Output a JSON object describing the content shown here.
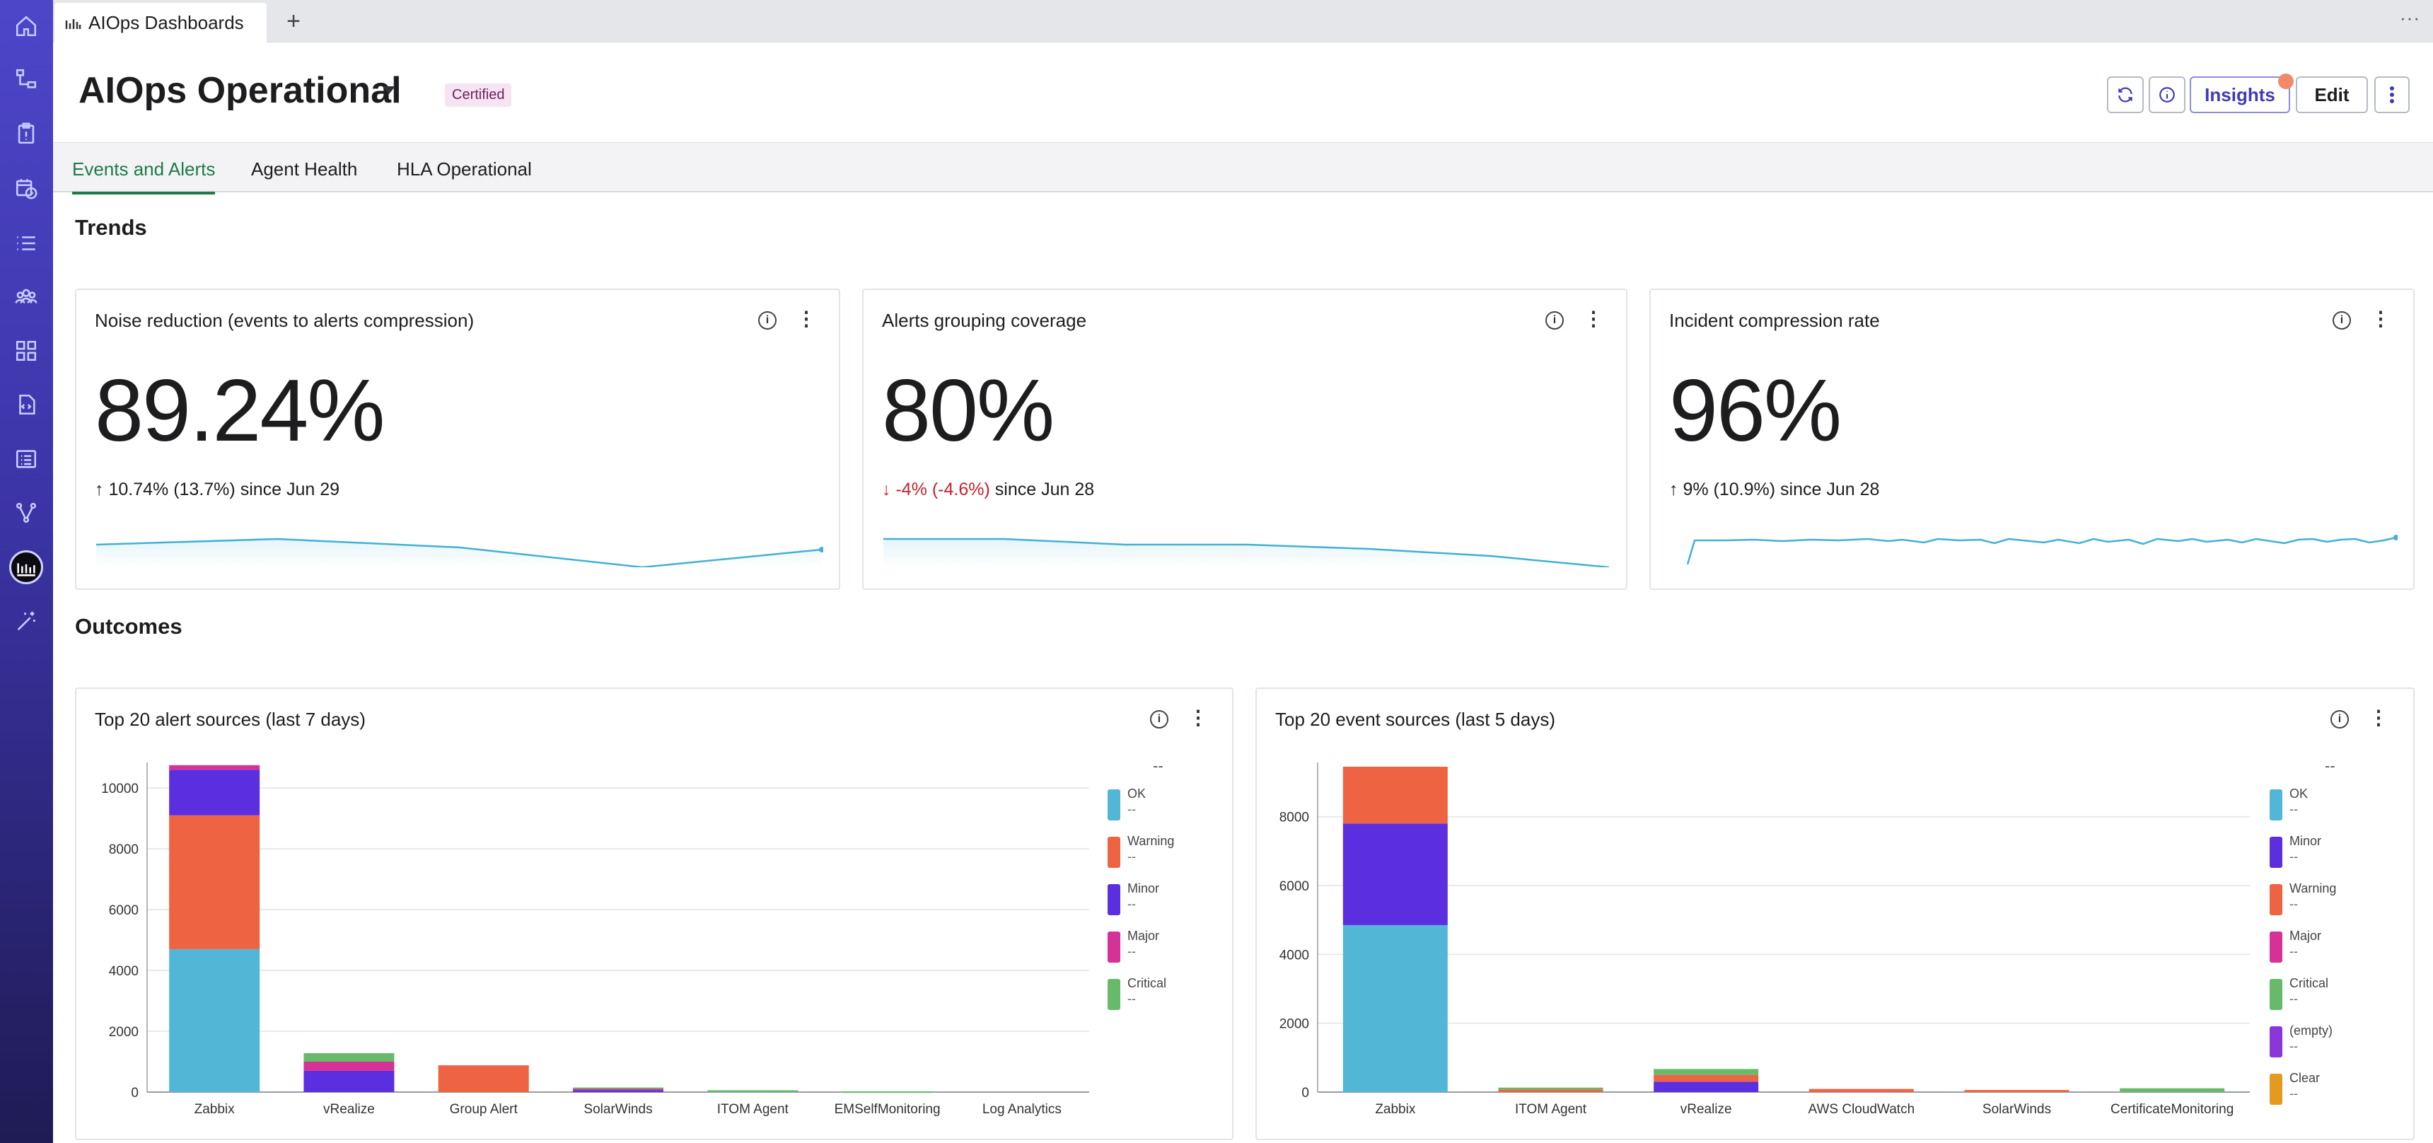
{
  "browser_tab": {
    "label": "AIOps Dashboards"
  },
  "header": {
    "title": "AIOps Operational",
    "badge": "Certified",
    "insights_label": "Insights",
    "edit_label": "Edit"
  },
  "tabs": [
    {
      "label": "Events and Alerts",
      "active": true
    },
    {
      "label": "Agent Health",
      "active": false
    },
    {
      "label": "HLA Operational",
      "active": false
    }
  ],
  "sections": {
    "trends": "Trends",
    "outcomes": "Outcomes"
  },
  "kpis": [
    {
      "title": "Noise reduction (events to alerts compression)",
      "value": "89.24%",
      "direction": "up",
      "change": "10.74% (13.7%)",
      "since": "since Jun 29",
      "trend": [
        0.55,
        0.42,
        0.6,
        1.0,
        0.72
      ]
    },
    {
      "title": "Alerts grouping coverage",
      "value": "80%",
      "direction": "down",
      "change": "-4% (-4.6%)",
      "since": "since Jun 28",
      "trend": [
        0.2,
        0.2,
        0.35,
        0.35,
        0.45,
        0.6,
        1.0
      ]
    },
    {
      "title": "Incident compression rate",
      "value": "96%",
      "direction": "up",
      "change": "9% (10.9%)",
      "since": "since Jun 28",
      "trend": []
    }
  ],
  "charts": {
    "alerts": {
      "title": "Top 20 alert sources (last 7 days)"
    },
    "events": {
      "title": "Top 20 event sources (last 5 days)"
    }
  },
  "legend_placeholder": "--",
  "colors": {
    "OK": "#52b6d6",
    "Warning": "#ee6342",
    "Minor": "#5b2ee0",
    "Major": "#d63196",
    "Critical": "#67ba6a",
    "(empty)": "#8a36d9",
    "Clear": "#e49a20"
  },
  "chart_data": [
    {
      "type": "bar",
      "stacked": true,
      "title": "Top 20 alert sources (last 7 days)",
      "categories": [
        "Zabbix",
        "vRealize",
        "Group Alert",
        "SolarWinds",
        "ITOM Agent",
        "EMSelfMonitoring",
        "Log Analytics"
      ],
      "series": [
        {
          "name": "OK",
          "values": [
            4700,
            0,
            0,
            0,
            0,
            0,
            0
          ]
        },
        {
          "name": "Warning",
          "values": [
            4400,
            0,
            880,
            0,
            0,
            0,
            0
          ]
        },
        {
          "name": "Minor",
          "values": [
            1500,
            700,
            0,
            60,
            0,
            0,
            0
          ]
        },
        {
          "name": "Major",
          "values": [
            150,
            300,
            0,
            60,
            0,
            0,
            0
          ]
        },
        {
          "name": "Critical",
          "values": [
            0,
            280,
            0,
            30,
            60,
            20,
            0
          ]
        }
      ],
      "yticks": [
        0,
        2000,
        4000,
        6000,
        8000,
        10000
      ],
      "ylim": [
        0,
        10700
      ],
      "legend": [
        "OK",
        "Warning",
        "Minor",
        "Major",
        "Critical"
      ],
      "legend_position": "right"
    },
    {
      "type": "bar",
      "stacked": true,
      "title": "Top 20 event sources (last 5 days)",
      "categories": [
        "Zabbix",
        "ITOM Agent",
        "vRealize",
        "AWS CloudWatch",
        "SolarWinds",
        "CertificateMonitoring"
      ],
      "series": [
        {
          "name": "OK",
          "values": [
            4850,
            0,
            0,
            0,
            0,
            0
          ]
        },
        {
          "name": "Minor",
          "values": [
            2950,
            0,
            300,
            0,
            0,
            0
          ]
        },
        {
          "name": "Warning",
          "values": [
            1650,
            70,
            200,
            90,
            60,
            0
          ]
        },
        {
          "name": "Major",
          "values": [
            0,
            0,
            0,
            0,
            0,
            0
          ]
        },
        {
          "name": "Critical",
          "values": [
            0,
            60,
            170,
            0,
            0,
            110
          ]
        },
        {
          "name": "(empty)",
          "values": [
            0,
            0,
            0,
            0,
            0,
            0
          ]
        },
        {
          "name": "Clear",
          "values": [
            0,
            0,
            0,
            0,
            0,
            0
          ]
        }
      ],
      "yticks": [
        0,
        2000,
        4000,
        6000,
        8000
      ],
      "ylim": [
        0,
        9450
      ],
      "legend": [
        "OK",
        "Minor",
        "Warning",
        "Major",
        "Critical",
        "(empty)",
        "Clear"
      ],
      "legend_position": "right"
    }
  ]
}
